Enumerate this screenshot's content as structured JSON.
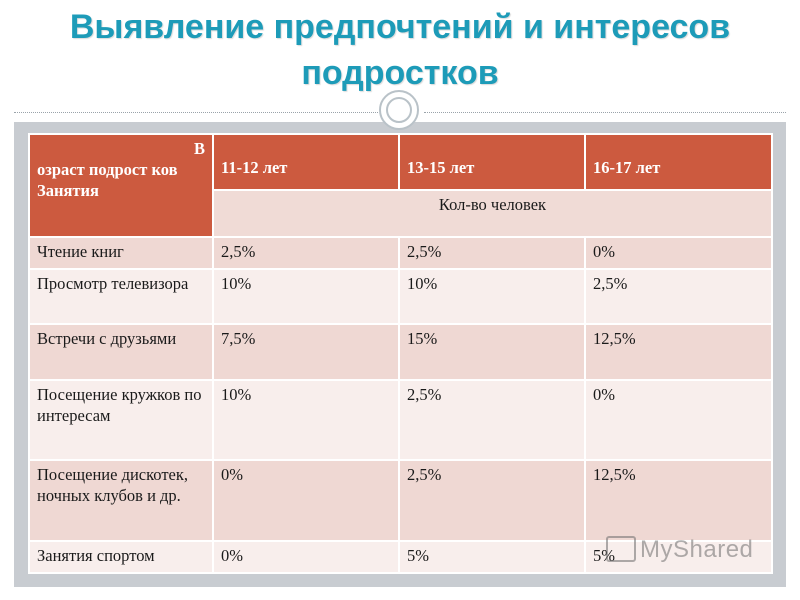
{
  "title": "Выявление предпочтений и интересов подростков",
  "table": {
    "header": {
      "corner_top": "В",
      "corner_middle": "озраст подрост ков",
      "corner_bottom": "Занятия",
      "ages": [
        "11-12 лет",
        "13-15 лет",
        "16-17 лет"
      ],
      "count_label": "Кол-во человек"
    },
    "rows": [
      {
        "activity": "Чтение книг",
        "values": [
          "2,5%",
          "2,5%",
          "0%"
        ]
      },
      {
        "activity": "Просмотр телевизора",
        "values": [
          "10%",
          "10%",
          "2,5%"
        ]
      },
      {
        "activity": "Встречи с друзьями",
        "values": [
          "7,5%",
          "15%",
          "12,5%"
        ]
      },
      {
        "activity": "Посещение кружков по интересам",
        "values": [
          "10%",
          "2,5%",
          "0%"
        ]
      },
      {
        "activity": "Посещение дискотек, ночных клубов и др.",
        "values": [
          "0%",
          "2,5%",
          "12,5%"
        ]
      },
      {
        "activity": "Занятия спортом",
        "values": [
          "0%",
          "5%",
          "5%"
        ]
      }
    ]
  },
  "watermark": "MyShared",
  "colors": {
    "title": "#1d9bb8",
    "header": "#cc5a3f",
    "row_dark": "#efd8d3",
    "row_light": "#f8eeec"
  }
}
